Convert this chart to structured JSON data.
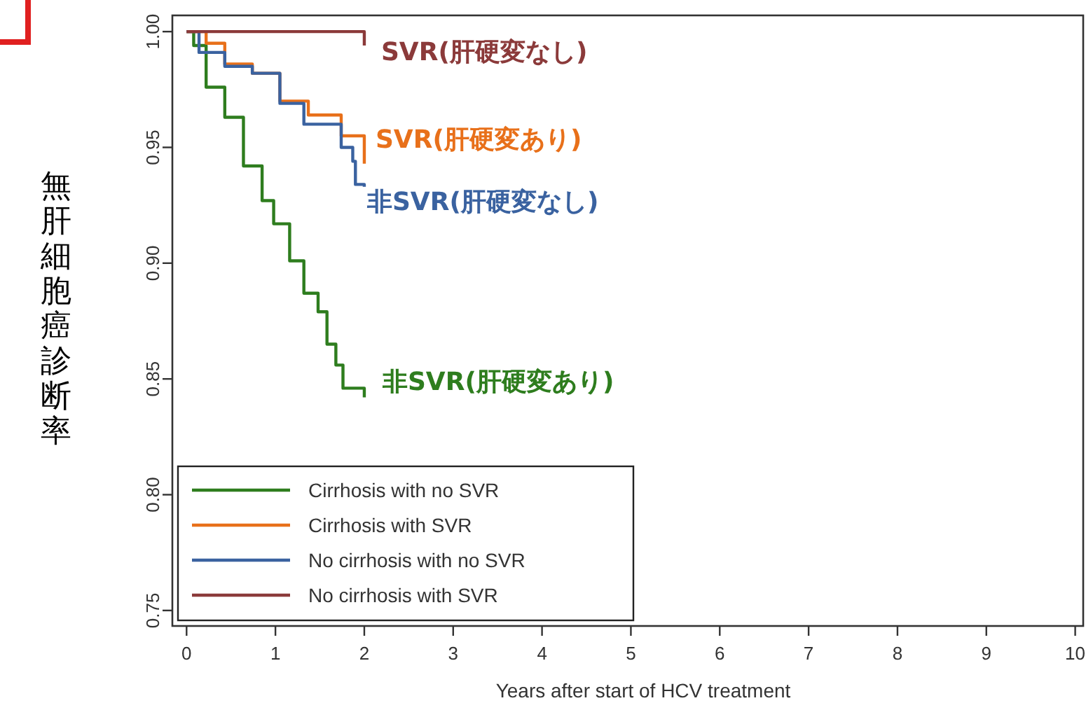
{
  "chart_data": {
    "type": "step",
    "xlabel": "Years after start of HCV treatment",
    "ylabel": "無肝細胞癌診断率",
    "xlim": [
      -0.16,
      10.09
    ],
    "ylim": [
      0.7433,
      1.007
    ],
    "xticks": [
      0,
      1,
      2,
      3,
      4,
      5,
      6,
      7,
      8,
      9,
      10
    ],
    "yticks": [
      {
        "value": 0.75,
        "label": "0.75"
      },
      {
        "value": 0.8,
        "label": "0.80"
      },
      {
        "value": 0.85,
        "label": "0.85"
      },
      {
        "value": 0.9,
        "label": "0.90"
      },
      {
        "value": 0.95,
        "label": "0.95"
      },
      {
        "value": 1.0,
        "label": "1.00"
      }
    ],
    "grid": false,
    "legend": "bottom left",
    "marker": "none",
    "line_style": "solid",
    "series": [
      {
        "name": "Cirrhosis with no SVR",
        "color": "#2e7d1e",
        "x": [
          0,
          0.08,
          0.22,
          0.43,
          0.64,
          0.85,
          0.98,
          1.16,
          1.32,
          1.48,
          1.58,
          1.68,
          1.76,
          2.0
        ],
        "values": [
          1.0,
          0.994,
          0.976,
          0.963,
          0.942,
          0.927,
          0.917,
          0.901,
          0.887,
          0.879,
          0.865,
          0.856,
          0.846,
          0.842
        ]
      },
      {
        "name": "Cirrhosis with SVR",
        "color": "#e8701a",
        "x": [
          0,
          0.22,
          0.43,
          0.74,
          1.05,
          1.37,
          1.74,
          2.0
        ],
        "values": [
          1.0,
          0.995,
          0.986,
          0.982,
          0.97,
          0.964,
          0.955,
          0.943
        ]
      },
      {
        "name": "No cirrhosis with no SVR",
        "color": "#3a62a0",
        "x": [
          0,
          0.14,
          0.43,
          0.74,
          1.05,
          1.32,
          1.74,
          1.87,
          1.9,
          2.0
        ],
        "values": [
          1.0,
          0.991,
          0.985,
          0.982,
          0.969,
          0.96,
          0.95,
          0.944,
          0.934,
          0.933
        ]
      },
      {
        "name": "No cirrhosis with SVR",
        "color": "#8b3a3a",
        "x": [
          0,
          2.0
        ],
        "values": [
          1.0,
          0.994
        ]
      }
    ],
    "annotations": [
      "非SVR(肝硬変あり)",
      "SVR(肝硬変あり)",
      "非SVR(肝硬変なし)",
      "SVR(肝硬変なし)"
    ]
  }
}
